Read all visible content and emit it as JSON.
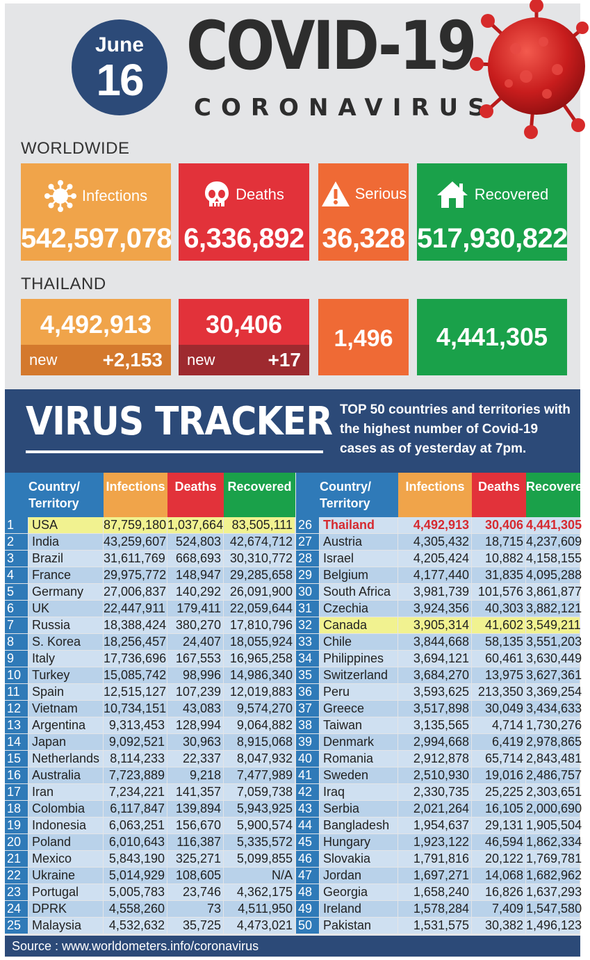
{
  "header": {
    "month": "June",
    "day": "16",
    "title": "COVID-19",
    "subtitle": "CORONAVIRUS"
  },
  "worldwide": {
    "label": "WORLDWIDE",
    "infections_label": "Infections",
    "infections": "542,597,078",
    "deaths_label": "Deaths",
    "deaths": "6,336,892",
    "serious_label": "Serious",
    "serious": "36,328",
    "recovered_label": "Recovered",
    "recovered": "517,930,822"
  },
  "thailand": {
    "label": "THAILAND",
    "infections": "4,492,913",
    "new_label": "new",
    "new_infections": "+2,153",
    "deaths": "30,406",
    "new_deaths": "+17",
    "serious": "1,496",
    "recovered": "4,441,305"
  },
  "tracker": {
    "title": "VIRUS TRACKER",
    "desc_bold": "TOP 50",
    "desc_rest": " countries and territories with the highest number of Covid-19 cases as of yesterday at 7pm."
  },
  "table": {
    "headers": {
      "country": "Country/ Territory",
      "infections": "Infections",
      "deaths": "Deaths",
      "recovered": "Recovered"
    },
    "rows": [
      [
        "1",
        "USA",
        "87,759,180",
        "1,037,664",
        "83,505,111"
      ],
      [
        "2",
        "India",
        "43,259,607",
        "524,803",
        "42,674,712"
      ],
      [
        "3",
        "Brazil",
        "31,611,769",
        "668,693",
        "30,310,772"
      ],
      [
        "4",
        "France",
        "29,975,772",
        "148,947",
        "29,285,658"
      ],
      [
        "5",
        "Germany",
        "27,006,837",
        "140,292",
        "26,091,900"
      ],
      [
        "6",
        "UK",
        "22,447,911",
        "179,411",
        "22,059,644"
      ],
      [
        "7",
        "Russia",
        "18,388,424",
        "380,270",
        "17,810,796"
      ],
      [
        "8",
        "S. Korea",
        "18,256,457",
        "24,407",
        "18,055,924"
      ],
      [
        "9",
        "Italy",
        "17,736,696",
        "167,553",
        "16,965,258"
      ],
      [
        "10",
        "Turkey",
        "15,085,742",
        "98,996",
        "14,986,340"
      ],
      [
        "11",
        "Spain",
        "12,515,127",
        "107,239",
        "12,019,883"
      ],
      [
        "12",
        "Vietnam",
        "10,734,151",
        "43,083",
        "9,574,270"
      ],
      [
        "13",
        "Argentina",
        "9,313,453",
        "128,994",
        "9,064,882"
      ],
      [
        "14",
        "Japan",
        "9,092,521",
        "30,963",
        "8,915,068"
      ],
      [
        "15",
        "Netherlands",
        "8,114,233",
        "22,337",
        "8,047,932"
      ],
      [
        "16",
        "Australia",
        "7,723,889",
        "9,218",
        "7,477,989"
      ],
      [
        "17",
        "Iran",
        "7,234,221",
        "141,357",
        "7,059,738"
      ],
      [
        "18",
        "Colombia",
        "6,117,847",
        "139,894",
        "5,943,925"
      ],
      [
        "19",
        "Indonesia",
        "6,063,251",
        "156,670",
        "5,900,574"
      ],
      [
        "20",
        "Poland",
        "6,010,643",
        "116,387",
        "5,335,572"
      ],
      [
        "21",
        "Mexico",
        "5,843,190",
        "325,271",
        "5,099,855"
      ],
      [
        "22",
        "Ukraine",
        "5,014,929",
        "108,605",
        "N/A"
      ],
      [
        "23",
        "Portugal",
        "5,005,783",
        "23,746",
        "4,362,175"
      ],
      [
        "24",
        "DPRK",
        "4,558,260",
        "73",
        "4,511,950"
      ],
      [
        "25",
        "Malaysia",
        "4,532,632",
        "35,725",
        "4,473,021"
      ],
      [
        "26",
        "Thailand",
        "4,492,913",
        "30,406",
        "4,441,305"
      ],
      [
        "27",
        "Austria",
        "4,305,432",
        "18,715",
        "4,237,609"
      ],
      [
        "28",
        "Israel",
        "4,205,424",
        "10,882",
        "4,158,155"
      ],
      [
        "29",
        "Belgium",
        "4,177,440",
        "31,835",
        "4,095,288"
      ],
      [
        "30",
        "South Africa",
        "3,981,739",
        "101,576",
        "3,861,877"
      ],
      [
        "31",
        "Czechia",
        "3,924,356",
        "40,303",
        "3,882,121"
      ],
      [
        "32",
        "Canada",
        "3,905,314",
        "41,602",
        "3,549,211"
      ],
      [
        "33",
        "Chile",
        "3,844,668",
        "58,135",
        "3,551,203"
      ],
      [
        "34",
        "Philippines",
        "3,694,121",
        "60,461",
        "3,630,449"
      ],
      [
        "35",
        "Switzerland",
        "3,684,270",
        "13,975",
        "3,627,361"
      ],
      [
        "36",
        "Peru",
        "3,593,625",
        "213,350",
        "3,369,254"
      ],
      [
        "37",
        "Greece",
        "3,517,898",
        "30,049",
        "3,434,633"
      ],
      [
        "38",
        "Taiwan",
        "3,135,565",
        "4,714",
        "1,730,276"
      ],
      [
        "39",
        "Denmark",
        "2,994,668",
        "6,419",
        "2,978,865"
      ],
      [
        "40",
        "Romania",
        "2,912,878",
        "65,714",
        "2,843,481"
      ],
      [
        "41",
        "Sweden",
        "2,510,930",
        "19,016",
        "2,486,757"
      ],
      [
        "42",
        "Iraq",
        "2,330,735",
        "25,225",
        "2,303,651"
      ],
      [
        "43",
        "Serbia",
        "2,021,264",
        "16,105",
        "2,000,690"
      ],
      [
        "44",
        "Bangladesh",
        "1,954,637",
        "29,131",
        "1,905,504"
      ],
      [
        "45",
        "Hungary",
        "1,923,122",
        "46,594",
        "1,862,334"
      ],
      [
        "46",
        "Slovakia",
        "1,791,816",
        "20,122",
        "1,769,781"
      ],
      [
        "47",
        "Jordan",
        "1,697,271",
        "14,068",
        "1,682,962"
      ],
      [
        "48",
        "Georgia",
        "1,658,240",
        "16,826",
        "1,637,293"
      ],
      [
        "49",
        "Ireland",
        "1,578,284",
        "7,409",
        "1,547,580"
      ],
      [
        "50",
        "Pakistan",
        "1,531,575",
        "30,382",
        "1,496,123"
      ]
    ],
    "highlight_yellow": [
      "USA",
      "Canada"
    ],
    "highlight_red": [
      "Thailand"
    ]
  },
  "source": "Source : www.worldometers.info/coronavirus",
  "colors": {
    "navy": "#2c4a78",
    "orange": "#f0a44a",
    "red": "#e2323a",
    "dark_orange": "#ef6a35",
    "green": "#1aa14a",
    "table_blue": "#2f7ab8",
    "highlight_yellow": "#f1f290"
  },
  "icons": [
    "virus-icon",
    "skull-icon",
    "warning-icon",
    "house-icon"
  ]
}
